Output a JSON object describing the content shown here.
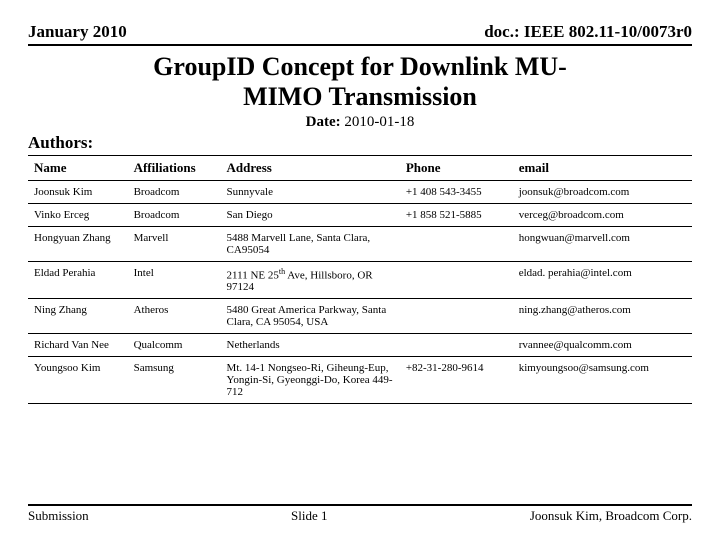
{
  "header": {
    "left": "January 2010",
    "right": "doc.: IEEE 802.11-10/0073r0"
  },
  "title_line1": "GroupID Concept for Downlink MU-",
  "title_line2": "MIMO Transmission",
  "date_label": "Date:",
  "date_value": " 2010-01-18",
  "authors_label": "Authors:",
  "table": {
    "columns": [
      "Name",
      "Affiliations",
      "Address",
      "Phone",
      "email"
    ],
    "rows": [
      [
        "Joonsuk Kim",
        "Broadcom",
        "Sunnyvale",
        "+1 408 543-3455",
        "joonsuk@broadcom.com"
      ],
      [
        "Vinko Erceg",
        "Broadcom",
        "San Diego",
        "+1 858 521-5885",
        "verceg@broadcom.com"
      ],
      [
        "Hongyuan Zhang",
        "Marvell",
        "5488 Marvell Lane, Santa Clara, CA95054",
        "",
        "hongwuan@marvell.com"
      ],
      [
        "Eldad Perahia",
        "Intel",
        "2111 NE 25th Ave, Hillsboro, OR 97124",
        "",
        "eldad. perahia@intel.com"
      ],
      [
        "Ning Zhang",
        "Atheros",
        "5480 Great America Parkway, Santa Clara, CA 95054, USA",
        "",
        "ning.zhang@atheros.com"
      ],
      [
        "Richard Van Nee",
        "Qualcomm",
        "Netherlands",
        "",
        "rvannee@qualcomm.com"
      ],
      [
        "Youngsoo Kim",
        "Samsung",
        "Mt. 14-1 Nongseo-Ri, Giheung-Eup, Yongin-Si, Gyeonggi-Do, Korea 449-712",
        "+82-31-280-9614",
        "kimyoungsoo@samsung.com"
      ]
    ]
  },
  "footer": {
    "left": "Submission",
    "center": "Slide 1",
    "right": "Joonsuk Kim, Broadcom Corp."
  },
  "style": {
    "background_color": "#ffffff",
    "text_color": "#000000",
    "border_color": "#000000",
    "title_fontsize": 26,
    "header_fontsize": 17,
    "table_header_fontsize": 13,
    "table_body_fontsize": 11,
    "footer_fontsize": 13,
    "font_family": "Times New Roman"
  }
}
